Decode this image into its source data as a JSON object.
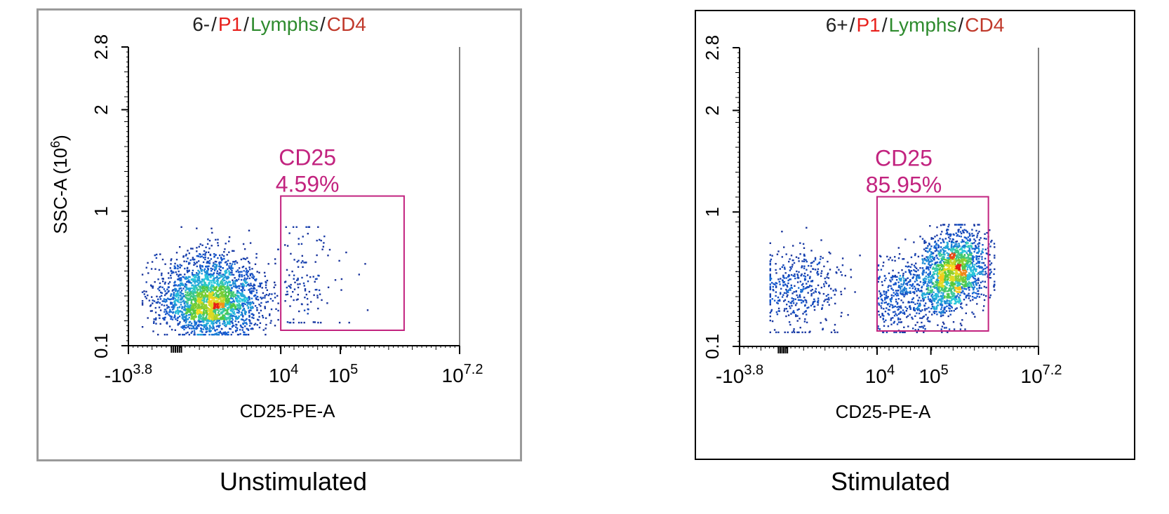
{
  "colors": {
    "title_sep": "#222222",
    "p1": "#e8201c",
    "lymphs": "#2e8b2e",
    "cd4": "#c0392b",
    "gate": "#c2237f",
    "axis": "#000000"
  },
  "chart_data": [
    {
      "type": "scatter",
      "panel": "left",
      "title_parts": [
        "6-",
        "/",
        "P1",
        "/",
        "Lymphs",
        "/",
        "CD4"
      ],
      "xlabel": "CD25-PE-A",
      "ylabel": "SSC-A (10^6)",
      "ylabel_base": "SSC-A (10",
      "ylabel_exp": "6",
      "ylabel_close": ")",
      "x_ticks": [
        {
          "base": "-10",
          "exp": "3.8",
          "value": -6310
        },
        {
          "base": "10",
          "exp": "4",
          "value": 10000
        },
        {
          "base": "10",
          "exp": "5",
          "value": 100000
        },
        {
          "base": "10",
          "exp": "7.2",
          "value": 15848932
        }
      ],
      "y_ticks": [
        "0.1",
        "1",
        "2",
        "2.8"
      ],
      "ylim": [
        0.1,
        2.8
      ],
      "gate": {
        "name": "CD25",
        "percent": "4.59%",
        "x_min": 10000,
        "x_max": 1500000,
        "y_min": 0.1,
        "y_max": 1.15
      },
      "populations": [
        {
          "x_center": 1500,
          "y_center": 0.42,
          "count": 2600,
          "note": "main CD25-negative cluster"
        },
        {
          "x_center": 22000,
          "y_center": 0.55,
          "count": 130,
          "note": "CD25-positive events"
        }
      ],
      "caption": "Unstimulated"
    },
    {
      "type": "scatter",
      "panel": "right",
      "title_parts": [
        "6+",
        "/",
        "P1",
        "/",
        "Lymphs",
        "/",
        "CD4"
      ],
      "xlabel": "CD25-PE-A",
      "ylabel": "SSC-A (10^6)",
      "ylabel_base": "SSC-A (10",
      "ylabel_exp": "6",
      "ylabel_close": ")",
      "x_ticks": [
        {
          "base": "-10",
          "exp": "3.8",
          "value": -6310
        },
        {
          "base": "10",
          "exp": "4",
          "value": 10000
        },
        {
          "base": "10",
          "exp": "5",
          "value": 100000
        },
        {
          "base": "10",
          "exp": "7.2",
          "value": 15848932
        }
      ],
      "y_ticks": [
        "0.1",
        "1",
        "2",
        "2.8"
      ],
      "ylim": [
        0.1,
        2.8
      ],
      "gate": {
        "name": "CD25",
        "percent": "85.95%",
        "x_min": 10000,
        "x_max": 1500000,
        "y_min": 0.1,
        "y_max": 1.15
      },
      "populations": [
        {
          "x_center": 250000,
          "y_center": 0.6,
          "count": 1600,
          "note": "activated CD25-positive cluster"
        },
        {
          "x_center": 1500,
          "y_center": 0.5,
          "count": 420,
          "note": "CD25-negative events"
        }
      ],
      "caption": "Stimulated"
    }
  ]
}
